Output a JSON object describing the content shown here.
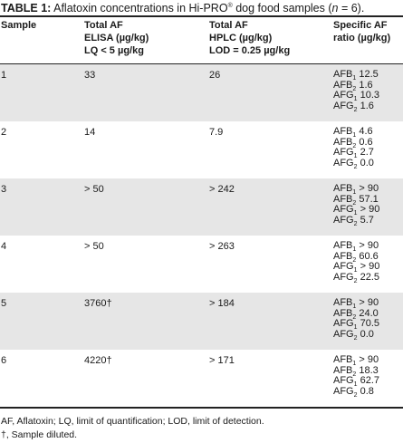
{
  "caption": {
    "label": "TABLE 1:",
    "text_a": " Aflatoxin concentrations in Hi-PRO",
    "reg": "®",
    "text_b": " dog food samples (",
    "n_var": "n",
    "text_c": " = 6)."
  },
  "headers": {
    "sample": [
      "Sample"
    ],
    "elisa": [
      "Total AF",
      "ELISA (µg/kg)",
      "LQ < 5 µg/kg"
    ],
    "hplc": [
      "Total AF",
      "HPLC (µg/kg)",
      "LOD = 0.25 µg/kg"
    ],
    "ratio": [
      "Specific AF",
      "ratio (µg/kg)"
    ]
  },
  "rows": [
    {
      "sample": "1",
      "elisa": "33",
      "hplc": "26",
      "ratios": [
        {
          "n": "1",
          "v": "12.5"
        },
        {
          "n": "2",
          "v": "1.6"
        },
        {
          "n": "1",
          "v": "10.3",
          "g": true
        },
        {
          "n": "2",
          "v": "1.6",
          "g": true
        }
      ]
    },
    {
      "sample": "2",
      "elisa": "14",
      "hplc": "7.9",
      "ratios": [
        {
          "n": "1",
          "v": "4.6"
        },
        {
          "n": "2",
          "v": "0.6"
        },
        {
          "n": "1",
          "v": "2.7",
          "g": true
        },
        {
          "n": "2",
          "v": "0.0",
          "g": true
        }
      ]
    },
    {
      "sample": "3",
      "elisa": "> 50",
      "hplc": "> 242",
      "ratios": [
        {
          "n": "1",
          "v": "> 90"
        },
        {
          "n": "2",
          "v": "57.1"
        },
        {
          "n": "1",
          "v": "> 90",
          "g": true
        },
        {
          "n": "2",
          "v": "5.7",
          "g": true
        }
      ]
    },
    {
      "sample": "4",
      "elisa": "> 50",
      "hplc": "> 263",
      "ratios": [
        {
          "n": "1",
          "v": "> 90"
        },
        {
          "n": "2",
          "v": "60.6"
        },
        {
          "n": "1",
          "v": "> 90",
          "g": true
        },
        {
          "n": "2",
          "v": "22.5",
          "g": true
        }
      ]
    },
    {
      "sample": "5",
      "elisa": "3760†",
      "hplc": "> 184",
      "ratios": [
        {
          "n": "1",
          "v": "> 90"
        },
        {
          "n": "2",
          "v": "24.0"
        },
        {
          "n": "1",
          "v": "70.5",
          "g": true
        },
        {
          "n": "2",
          "v": "0.0",
          "g": true
        }
      ]
    },
    {
      "sample": "6",
      "elisa": "4220†",
      "hplc": "> 171",
      "ratios": [
        {
          "n": "1",
          "v": "> 90"
        },
        {
          "n": "2",
          "v": "18.3"
        },
        {
          "n": "1",
          "v": "62.7",
          "g": true
        },
        {
          "n": "2",
          "v": "0.8",
          "g": true
        }
      ]
    }
  ],
  "footnotes": {
    "abbrev": "AF, Aflatoxin; LQ, limit of quantification; LOD, limit of detection.",
    "dagger": "†, Sample diluted."
  },
  "colors": {
    "shade": "#e6e6e6",
    "rule": "#222222"
  }
}
